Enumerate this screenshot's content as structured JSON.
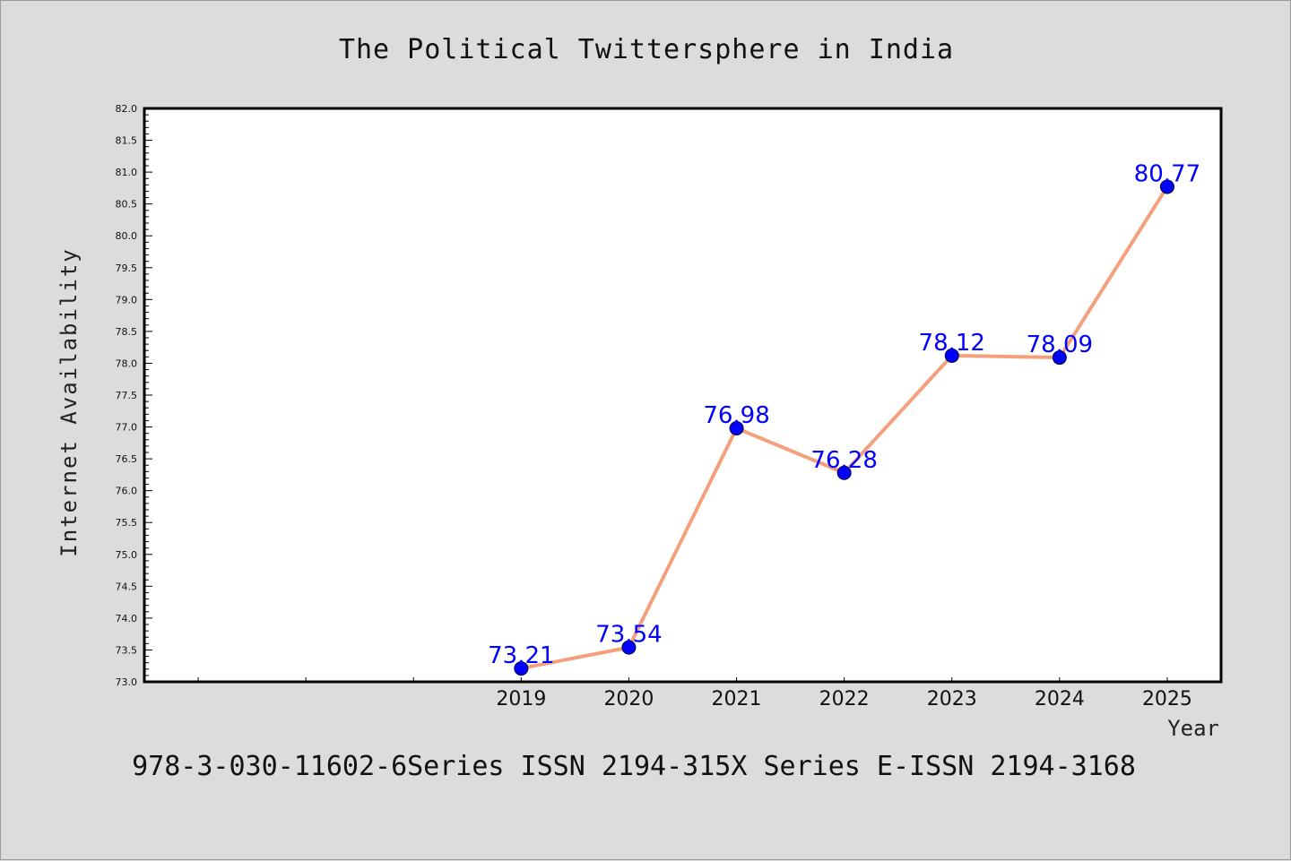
{
  "chart_data": {
    "type": "line",
    "title": "The Political Twittersphere in India",
    "xlabel": "Year",
    "ylabel": "Internet Availability",
    "categories": [
      "2019",
      "2020",
      "2021",
      "2022",
      "2023",
      "2024",
      "2025"
    ],
    "values": [
      73.21,
      73.54,
      76.98,
      76.28,
      78.12,
      78.09,
      80.77
    ],
    "data_labels": [
      "73.21",
      "73.54",
      "76.98",
      "76.28",
      "78.12",
      "78.09",
      "80.77"
    ],
    "ylim": [
      73.0,
      82.0
    ],
    "yticks": [
      "73.0",
      "73.5",
      "74.0",
      "74.5",
      "75.0",
      "75.5",
      "76.0",
      "76.5",
      "77.0",
      "77.5",
      "78.0",
      "78.5",
      "79.0",
      "79.5",
      "80.0",
      "80.5",
      "81.0",
      "81.5",
      "82.0"
    ],
    "x_axis_slots": 10,
    "first_category_slot": 3,
    "grid": false,
    "legend": "none",
    "line_color": "#f4a07c",
    "marker_color": "#0000ff",
    "label_color": "#0000ff",
    "plot_background": "#ffffff",
    "figure_background": "#dcdcdc"
  },
  "footer_text": "978-3-030-11602-6Series ISSN 2194-315X Series E-ISSN 2194-3168"
}
